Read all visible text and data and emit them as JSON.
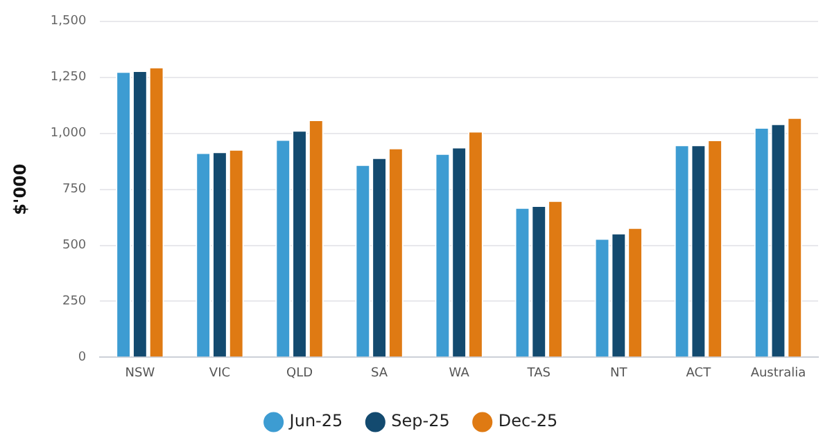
{
  "chart_data": {
    "type": "bar",
    "ylabel": "$'000",
    "categories": [
      "NSW",
      "VIC",
      "QLD",
      "SA",
      "WA",
      "TAS",
      "NT",
      "ACT",
      "Australia"
    ],
    "series": [
      {
        "name": "Jun-25",
        "color": "#3d9cd2",
        "values": [
          1276,
          914,
          973,
          861,
          910,
          669,
          531,
          949,
          1027
        ]
      },
      {
        "name": "Sep-25",
        "color": "#134a6f",
        "values": [
          1280,
          918,
          1014,
          892,
          939,
          678,
          555,
          949,
          1043
        ]
      },
      {
        "name": "Dec-25",
        "color": "#df7a13",
        "values": [
          1296,
          929,
          1061,
          935,
          1010,
          700,
          580,
          971,
          1071
        ]
      }
    ],
    "ylim": [
      0,
      1500
    ],
    "yticks": [
      0,
      250,
      500,
      750,
      {
        "value": 1000,
        "label": "1,000"
      },
      {
        "value": 1250,
        "label": "1,250"
      },
      {
        "value": 1500,
        "label": "1,500"
      }
    ],
    "grid": "y",
    "legend": "bottom"
  }
}
